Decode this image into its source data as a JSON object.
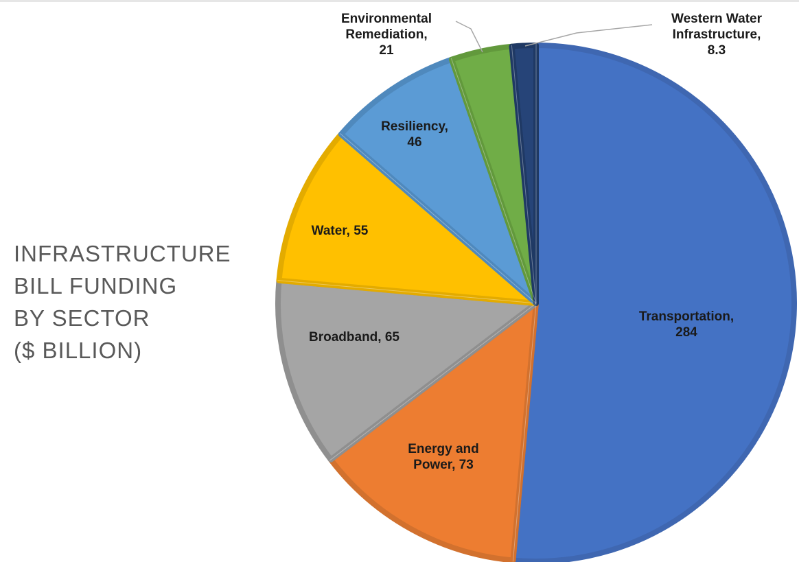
{
  "chart_data": {
    "type": "pie",
    "title_lines": [
      "INFRASTRUCTURE",
      "BILL FUNDING",
      "BY SECTOR",
      "($ BILLION)"
    ],
    "slices": [
      {
        "name": "Transportation",
        "value": 284,
        "label_lines": [
          "Transportation,",
          "284"
        ],
        "color": "#4472C4",
        "edge": "#3F67B1"
      },
      {
        "name": "Energy and Power",
        "value": 73,
        "label_lines": [
          "Energy and",
          "Power, 73"
        ],
        "color": "#ED7D31",
        "edge": "#D2712E"
      },
      {
        "name": "Broadband",
        "value": 65,
        "label_lines": [
          "Broadband, 65"
        ],
        "color": "#A5A5A5",
        "edge": "#8F8F8F"
      },
      {
        "name": "Water",
        "value": 55,
        "label_lines": [
          "Water, 55"
        ],
        "color": "#FFC000",
        "edge": "#E3AB00"
      },
      {
        "name": "Resiliency",
        "value": 46,
        "label_lines": [
          "Resiliency,",
          "46"
        ],
        "color": "#5B9BD5",
        "edge": "#4F89BD"
      },
      {
        "name": "Environmental Remediation",
        "value": 21,
        "label_lines": [
          "Environmental",
          "Remediation,",
          "21"
        ],
        "color": "#70AD47",
        "edge": "#62993C"
      },
      {
        "name": "Western Water Infrastructure",
        "value": 8.3,
        "label_lines": [
          "Western Water",
          "Infrastructure,",
          "8.3"
        ],
        "color": "#264478",
        "edge": "#1F3964"
      }
    ],
    "legend": "none"
  }
}
